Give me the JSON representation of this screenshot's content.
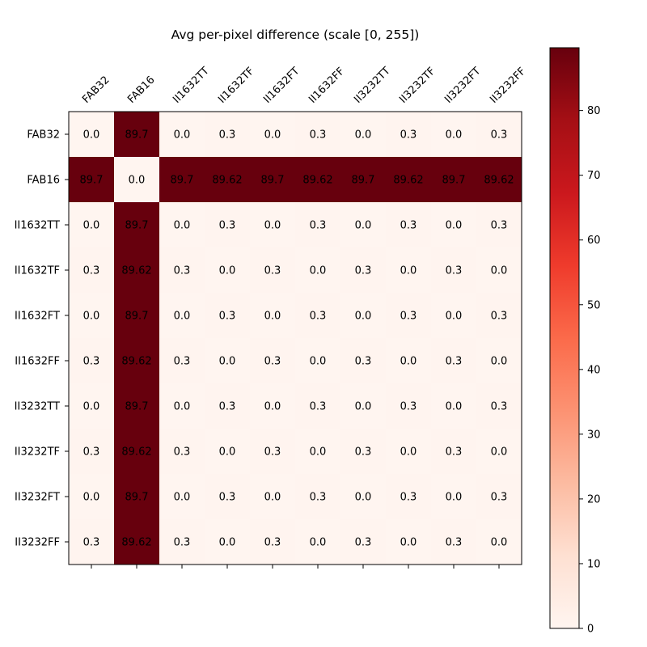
{
  "chart_data": {
    "type": "heatmap",
    "title": "Avg per-pixel difference (scale [0, 255])",
    "xlabel": "",
    "ylabel": "",
    "x_categories": [
      "FAB32",
      "FAB16",
      "II1632TT",
      "II1632TF",
      "II1632FT",
      "II1632FF",
      "II3232TT",
      "II3232TF",
      "II3232FT",
      "II3232FF"
    ],
    "y_categories": [
      "FAB32",
      "FAB16",
      "II1632TT",
      "II1632TF",
      "II1632FT",
      "II1632FF",
      "II3232TT",
      "II3232TF",
      "II3232FT",
      "II3232FF"
    ],
    "values": [
      [
        "0.0",
        "89.7",
        "0.0",
        "0.3",
        "0.0",
        "0.3",
        "0.0",
        "0.3",
        "0.0",
        "0.3"
      ],
      [
        "89.7",
        "0.0",
        "89.7",
        "89.62",
        "89.7",
        "89.62",
        "89.7",
        "89.62",
        "89.7",
        "89.62"
      ],
      [
        "0.0",
        "89.7",
        "0.0",
        "0.3",
        "0.0",
        "0.3",
        "0.0",
        "0.3",
        "0.0",
        "0.3"
      ],
      [
        "0.3",
        "89.62",
        "0.3",
        "0.0",
        "0.3",
        "0.0",
        "0.3",
        "0.0",
        "0.3",
        "0.0"
      ],
      [
        "0.0",
        "89.7",
        "0.0",
        "0.3",
        "0.0",
        "0.3",
        "0.0",
        "0.3",
        "0.0",
        "0.3"
      ],
      [
        "0.3",
        "89.62",
        "0.3",
        "0.0",
        "0.3",
        "0.0",
        "0.3",
        "0.0",
        "0.3",
        "0.0"
      ],
      [
        "0.0",
        "89.7",
        "0.0",
        "0.3",
        "0.0",
        "0.3",
        "0.0",
        "0.3",
        "0.0",
        "0.3"
      ],
      [
        "0.3",
        "89.62",
        "0.3",
        "0.0",
        "0.3",
        "0.0",
        "0.3",
        "0.0",
        "0.3",
        "0.0"
      ],
      [
        "0.0",
        "89.7",
        "0.0",
        "0.3",
        "0.0",
        "0.3",
        "0.0",
        "0.3",
        "0.0",
        "0.3"
      ],
      [
        "0.3",
        "89.62",
        "0.3",
        "0.0",
        "0.3",
        "0.0",
        "0.3",
        "0.0",
        "0.3",
        "0.0"
      ]
    ],
    "colormap": "Reds",
    "colorbar": {
      "range": [
        0,
        89.7
      ],
      "ticks": [
        "0",
        "10",
        "20",
        "30",
        "40",
        "50",
        "60",
        "70",
        "80"
      ]
    },
    "grid": false,
    "legend": "colorbar-right"
  }
}
